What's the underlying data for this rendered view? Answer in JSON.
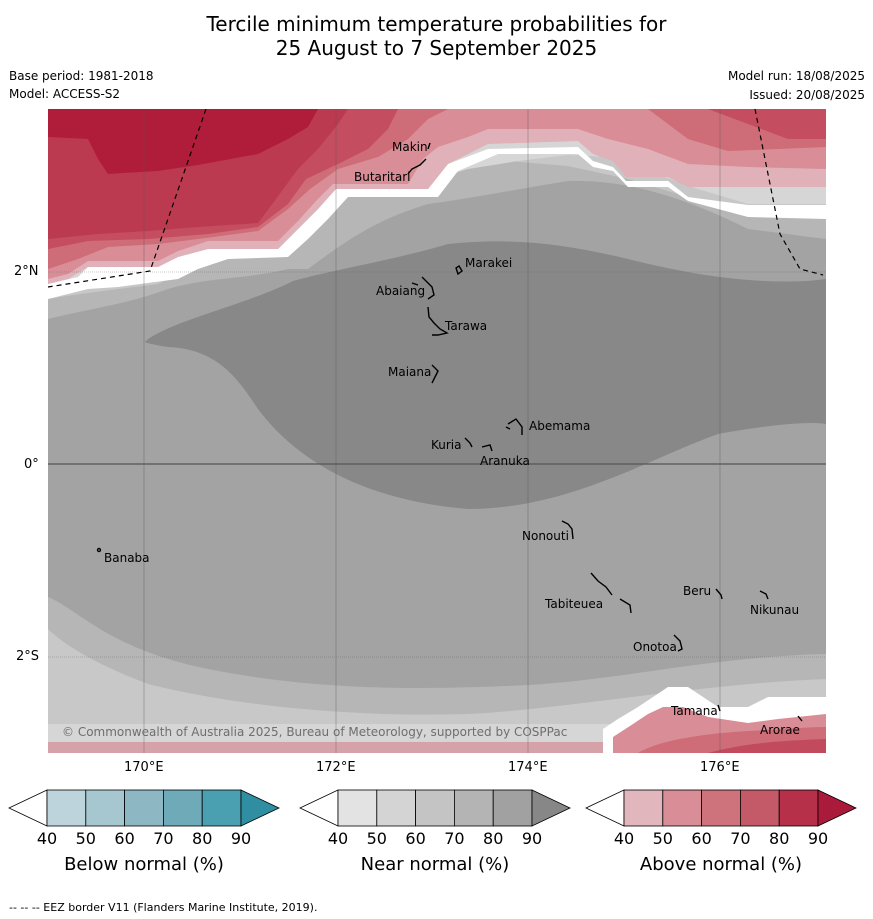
{
  "title_line1": "Tercile minimum temperature probabilities for",
  "title_line2": "25 August to 7 September 2025",
  "base_period": "Base period: 1981-2018",
  "model": "Model: ACCESS-S2",
  "model_run": "Model run: 18/08/2025",
  "issued": "Issued: 20/08/2025",
  "copyright": "© Commonwealth of Australia 2025, Bureau of Meteorology, supported by COSPPac",
  "lat_labels": [
    "2°N",
    "0°",
    "2°S"
  ],
  "lon_labels": [
    "170°E",
    "172°E",
    "174°E",
    "176°E"
  ],
  "places": [
    "Makin",
    "Butaritari",
    "Marakei",
    "Abaiang",
    "Tarawa",
    "Maiana",
    "Abemama",
    "Kuria",
    "Aranuka",
    "Nonouti",
    "Banaba",
    "Beru",
    "Nikunau",
    "Tabiteuea",
    "Onotoa",
    "Tamana",
    "Arorae"
  ],
  "colorbars": [
    {
      "label": "Below normal (%)",
      "ticks": [
        "40",
        "50",
        "60",
        "70",
        "80",
        "90"
      ],
      "colors": [
        "#ffffff",
        "#bdd4dc",
        "#a6c7d0",
        "#8cb7c3",
        "#6eaab8",
        "#4a9fb0",
        "#2f8ea1"
      ]
    },
    {
      "label": "Near normal (%)",
      "ticks": [
        "40",
        "50",
        "60",
        "70",
        "80",
        "90"
      ],
      "colors": [
        "#ffffff",
        "#e3e3e3",
        "#d4d4d4",
        "#c4c4c4",
        "#b4b4b4",
        "#a1a1a1",
        "#878787"
      ]
    },
    {
      "label": "Above normal (%)",
      "ticks": [
        "40",
        "50",
        "60",
        "70",
        "80",
        "90"
      ],
      "colors": [
        "#ffffff",
        "#e1b6bd",
        "#d98d97",
        "#ce737c",
        "#c45a68",
        "#b6304a",
        "#aa1a3a"
      ]
    }
  ],
  "footer": "--  --  -- EEZ border V11 (Flanders Marine Institute, 2019)."
}
